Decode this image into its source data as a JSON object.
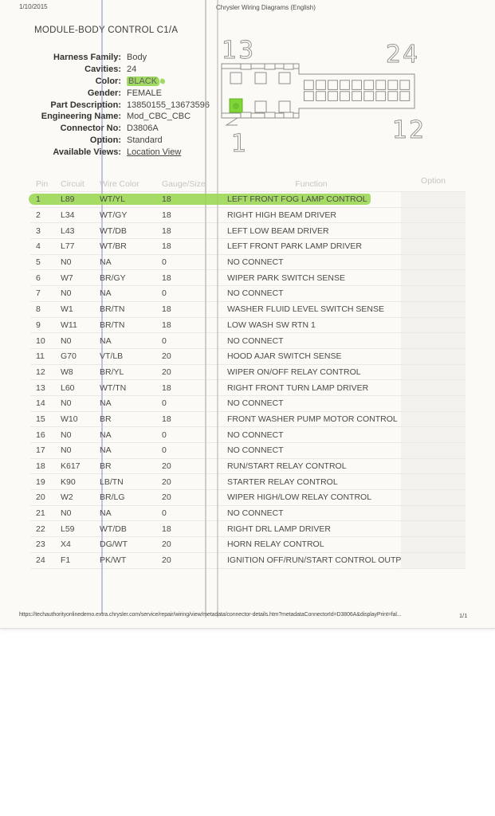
{
  "meta": {
    "date": "1/10/2015",
    "app_header": "Chrysler Wiring Diagrams (English)"
  },
  "connector": {
    "title": "MODULE-BODY CONTROL C1/A",
    "fields": [
      {
        "label": "Harness Family:",
        "value": "Body"
      },
      {
        "label": "Cavities:",
        "value": "24"
      },
      {
        "label": "Color:",
        "value": "BLACK",
        "style": "highlight"
      },
      {
        "label": "Gender:",
        "value": "FEMALE"
      },
      {
        "label": "Part Description:",
        "value": "13850155_13673596"
      },
      {
        "label": "Engineering Name:",
        "value": "Mod_CBC_CBC"
      },
      {
        "label": "Connector No:",
        "value": "D3806A"
      },
      {
        "label": "Option:",
        "value": "Standard"
      },
      {
        "label": "Available Views:",
        "value": "Location View",
        "style": "link"
      }
    ]
  },
  "diagram": {
    "label_top_left": "13",
    "label_top_right": "24",
    "label_bottom_right": "12",
    "label_bottom_left": "1",
    "pin1_fill": "#7fd636"
  },
  "table": {
    "headers": [
      "Pin",
      "Circuit",
      "Wire Color",
      "Gauge/Size",
      "Function",
      "Option"
    ],
    "highlighted_pin": "1",
    "highlight_color": "#97d64b",
    "rows": [
      {
        "pin": "1",
        "circuit": "L89",
        "wire_color": "WT/YL",
        "gauge": "18",
        "function": "LEFT FRONT FOG LAMP CONTROL",
        "option": ""
      },
      {
        "pin": "2",
        "circuit": "L34",
        "wire_color": "WT/GY",
        "gauge": "18",
        "function": "RIGHT HIGH BEAM DRIVER",
        "option": ""
      },
      {
        "pin": "3",
        "circuit": "L43",
        "wire_color": "WT/DB",
        "gauge": "18",
        "function": "LEFT LOW BEAM DRIVER",
        "option": ""
      },
      {
        "pin": "4",
        "circuit": "L77",
        "wire_color": "WT/BR",
        "gauge": "18",
        "function": "LEFT FRONT PARK LAMP DRIVER",
        "option": ""
      },
      {
        "pin": "5",
        "circuit": "N0",
        "wire_color": "NA",
        "gauge": "0",
        "function": "NO CONNECT",
        "option": ""
      },
      {
        "pin": "6",
        "circuit": "W7",
        "wire_color": "BR/GY",
        "gauge": "18",
        "function": "WIPER PARK SWITCH SENSE",
        "option": ""
      },
      {
        "pin": "7",
        "circuit": "N0",
        "wire_color": "NA",
        "gauge": "0",
        "function": "NO CONNECT",
        "option": ""
      },
      {
        "pin": "8",
        "circuit": "W1",
        "wire_color": "BR/TN",
        "gauge": "18",
        "function": "WASHER FLUID LEVEL SWITCH SENSE",
        "option": ""
      },
      {
        "pin": "9",
        "circuit": "W11",
        "wire_color": "BR/TN",
        "gauge": "18",
        "function": "LOW WASH SW RTN 1",
        "option": ""
      },
      {
        "pin": "10",
        "circuit": "N0",
        "wire_color": "NA",
        "gauge": "0",
        "function": "NO CONNECT",
        "option": ""
      },
      {
        "pin": "11",
        "circuit": "G70",
        "wire_color": "VT/LB",
        "gauge": "20",
        "function": "HOOD AJAR SWITCH SENSE",
        "option": ""
      },
      {
        "pin": "12",
        "circuit": "W8",
        "wire_color": "BR/YL",
        "gauge": "20",
        "function": "WIPER ON/OFF RELAY CONTROL",
        "option": ""
      },
      {
        "pin": "13",
        "circuit": "L60",
        "wire_color": "WT/TN",
        "gauge": "18",
        "function": "RIGHT FRONT TURN LAMP DRIVER",
        "option": ""
      },
      {
        "pin": "14",
        "circuit": "N0",
        "wire_color": "NA",
        "gauge": "0",
        "function": "NO CONNECT",
        "option": ""
      },
      {
        "pin": "15",
        "circuit": "W10",
        "wire_color": "BR",
        "gauge": "18",
        "function": "FRONT WASHER PUMP MOTOR CONTROL",
        "option": ""
      },
      {
        "pin": "16",
        "circuit": "N0",
        "wire_color": "NA",
        "gauge": "0",
        "function": "NO CONNECT",
        "option": ""
      },
      {
        "pin": "17",
        "circuit": "N0",
        "wire_color": "NA",
        "gauge": "0",
        "function": "NO CONNECT",
        "option": ""
      },
      {
        "pin": "18",
        "circuit": "K617",
        "wire_color": "BR",
        "gauge": "20",
        "function": "RUN/START RELAY CONTROL",
        "option": ""
      },
      {
        "pin": "19",
        "circuit": "K90",
        "wire_color": "LB/TN",
        "gauge": "20",
        "function": "STARTER RELAY CONTROL",
        "option": ""
      },
      {
        "pin": "20",
        "circuit": "W2",
        "wire_color": "BR/LG",
        "gauge": "20",
        "function": "WIPER HIGH/LOW RELAY CONTROL",
        "option": ""
      },
      {
        "pin": "21",
        "circuit": "N0",
        "wire_color": "NA",
        "gauge": "0",
        "function": "NO CONNECT",
        "option": ""
      },
      {
        "pin": "22",
        "circuit": "L59",
        "wire_color": "WT/DB",
        "gauge": "18",
        "function": "RIGHT DRL LAMP DRIVER",
        "option": ""
      },
      {
        "pin": "23",
        "circuit": "X4",
        "wire_color": "DG/WT",
        "gauge": "20",
        "function": "HORN RELAY CONTROL",
        "option": ""
      },
      {
        "pin": "24",
        "circuit": "F1",
        "wire_color": "PK/WT",
        "gauge": "20",
        "function": "IGNITION OFF/RUN/START CONTROL OUTPUT",
        "option": ""
      }
    ]
  },
  "footer": {
    "url": "https://techauthorityonlinedemo.extra.chrysler.com/service/repair/wiring/view/metadata/connector-details.htm?metadataConnectorId=D3806A&displayPrint=fal...",
    "page": "1/1"
  },
  "colors": {
    "black_value_highlight": "#92d54a",
    "page_bg": "#fbfaf7"
  }
}
